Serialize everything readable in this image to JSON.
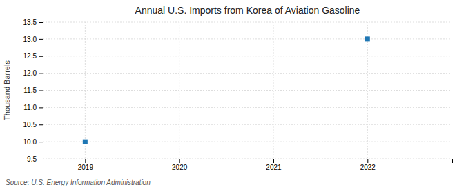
{
  "chart_data": {
    "type": "scatter",
    "title": "Annual U.S. Imports from Korea of Aviation Gasoline",
    "ylabel": "Thousand Barrels",
    "source": "Source: U.S. Energy Information Administration",
    "x": [
      2019,
      2022
    ],
    "values": [
      10.0,
      13.0
    ],
    "marker": "square",
    "xlim": [
      2018.55,
      2022.9
    ],
    "ylim": [
      9.5,
      13.5
    ],
    "xticks": [
      2019,
      2020,
      2021,
      2022
    ],
    "yticks": [
      9.5,
      {
        "value": 10.0,
        "label": "10.0"
      },
      10.5,
      {
        "value": 11.0,
        "label": "11.0"
      },
      11.5,
      {
        "value": 12.0,
        "label": "12.0"
      },
      12.5,
      {
        "value": 13.0,
        "label": "13.0"
      },
      13.5
    ],
    "grid": true
  }
}
